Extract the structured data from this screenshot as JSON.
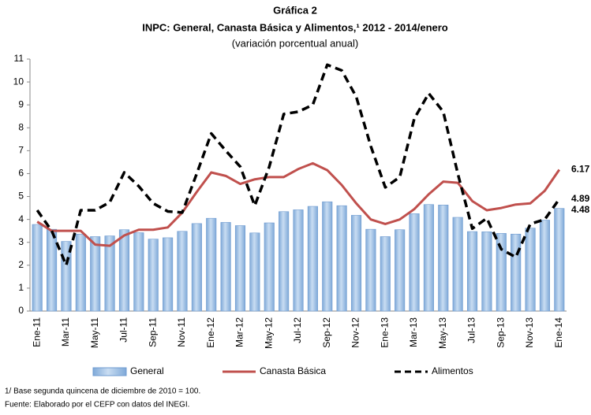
{
  "chart_data": {
    "type": "bar-line",
    "title": "Gráfica 2",
    "subtitle": "INPC: General, Canasta Básica y Alimentos,¹ 2012 - 2014/enero",
    "subtitle2": "(variación porcentual anual)",
    "notes": [
      "1/ Base segunda quincena de diciembre de 2010 = 100.",
      "Fuente: Elaborado por el CEFP con datos del INEGI."
    ],
    "categories": [
      "Ene-11",
      null,
      "Mar-11",
      null,
      "May-11",
      null,
      "Jul-11",
      null,
      "Sep-11",
      null,
      "Nov-11",
      null,
      "Ene-12",
      null,
      "Mar-12",
      null,
      "May-12",
      null,
      "Jul-12",
      null,
      "Sep-12",
      null,
      "Nov-12",
      null,
      "Ene-13",
      null,
      "Mar-13",
      null,
      "May-13",
      null,
      "Jul-13",
      null,
      "Sep-13",
      null,
      "Nov-13",
      null,
      "Ene-14"
    ],
    "series": [
      {
        "name": "General",
        "type": "bar",
        "color": "#9dc3e6",
        "values": [
          3.78,
          3.57,
          3.04,
          3.36,
          3.25,
          3.28,
          3.55,
          3.42,
          3.14,
          3.2,
          3.48,
          3.82,
          4.05,
          3.87,
          3.73,
          3.41,
          3.85,
          4.34,
          4.42,
          4.57,
          4.77,
          4.6,
          4.18,
          3.57,
          3.25,
          3.55,
          4.25,
          4.65,
          4.63,
          4.09,
          3.47,
          3.46,
          3.39,
          3.36,
          3.62,
          3.97,
          4.48
        ]
      },
      {
        "name": "Canasta Básica",
        "type": "line",
        "color": "#c0504d",
        "values": [
          3.9,
          3.5,
          3.5,
          3.5,
          2.9,
          2.85,
          3.3,
          3.55,
          3.55,
          3.65,
          4.3,
          5.2,
          6.05,
          5.9,
          5.55,
          5.75,
          5.85,
          5.85,
          6.2,
          6.45,
          6.15,
          5.5,
          4.7,
          4.0,
          3.8,
          4.0,
          4.45,
          5.1,
          5.65,
          5.6,
          4.8,
          4.4,
          4.5,
          4.65,
          4.7,
          5.25,
          6.17
        ]
      },
      {
        "name": "Alimentos",
        "type": "line",
        "dashed": true,
        "color": "#000000",
        "values": [
          4.4,
          3.5,
          2.0,
          4.4,
          4.4,
          4.75,
          6.05,
          5.45,
          4.7,
          4.35,
          4.3,
          6.0,
          7.75,
          7.0,
          6.3,
          4.6,
          6.3,
          8.6,
          8.7,
          9.0,
          10.75,
          10.5,
          9.35,
          7.2,
          5.4,
          5.85,
          8.4,
          9.5,
          8.7,
          6.0,
          3.6,
          4.05,
          2.7,
          2.35,
          3.8,
          4.0,
          4.89
        ]
      }
    ],
    "ylim": [
      0,
      11
    ],
    "yticks": [
      0,
      1,
      2,
      3,
      4,
      5,
      6,
      7,
      8,
      9,
      10,
      11
    ],
    "grid": false
  }
}
